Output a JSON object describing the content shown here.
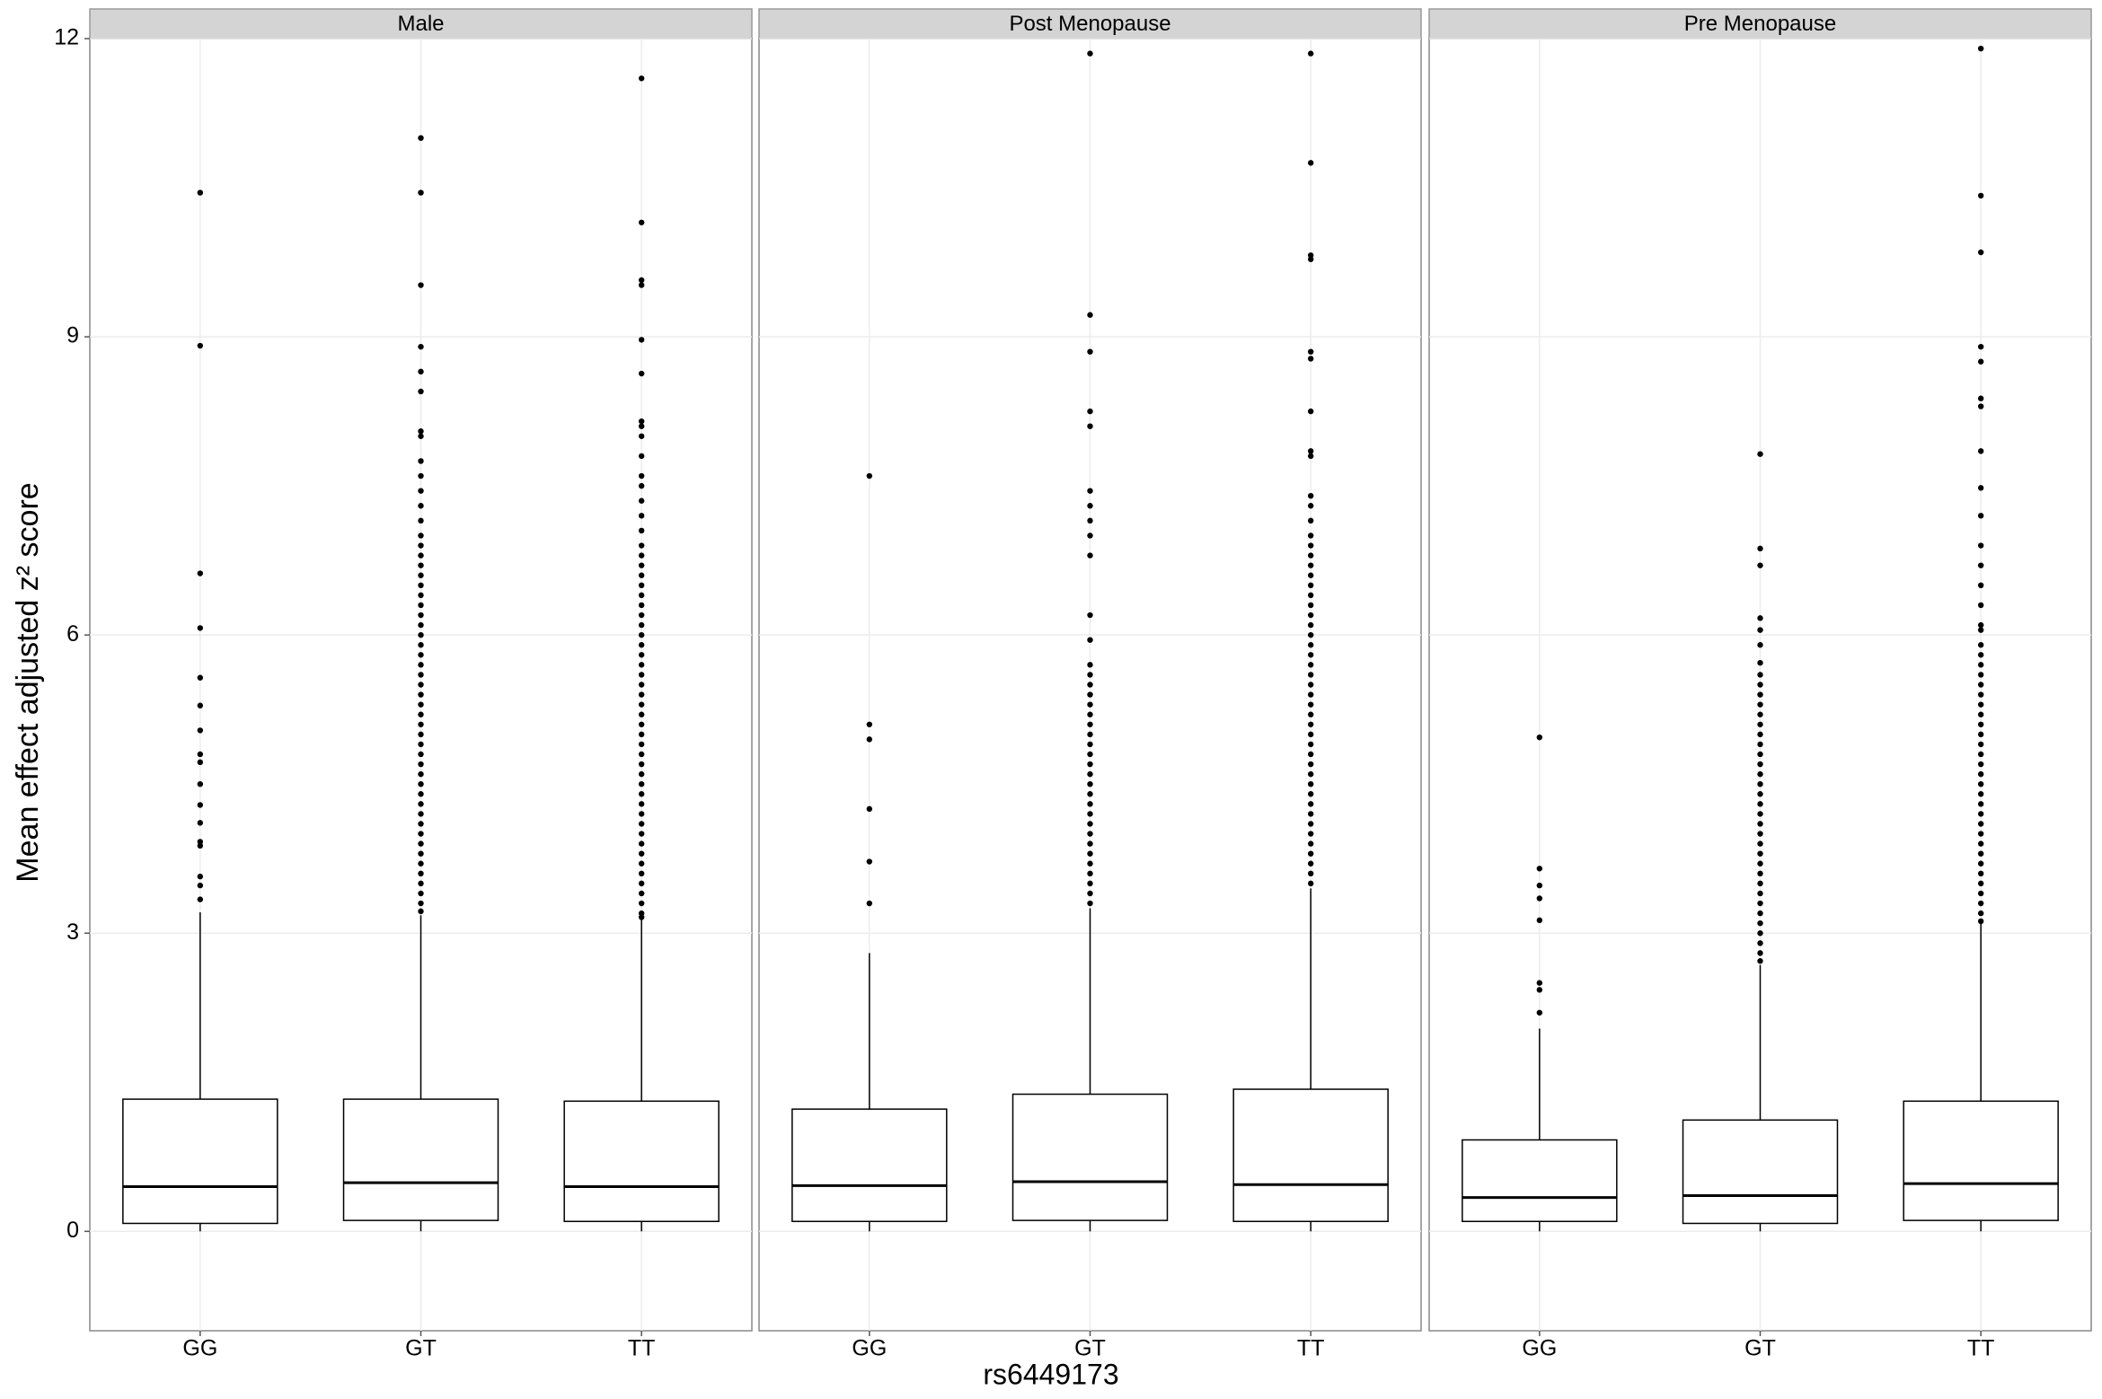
{
  "axis_labels": {
    "x": "rs6449173",
    "y": "Mean effect adjusted z² score"
  },
  "chart_data": [
    {
      "type": "box",
      "title": "Male",
      "categories": [
        "GG",
        "GT",
        "TT"
      ],
      "ylim": [
        -1,
        12
      ],
      "yticks": [
        0,
        3,
        6,
        9,
        12
      ],
      "grid": true,
      "color": "#000000",
      "stats": [
        {
          "low": 0,
          "q1": 0.08,
          "median": 0.45,
          "q3": 1.33,
          "high": 3.21,
          "outliers": [
            10.45,
            8.91,
            6.62,
            6.07,
            5.57,
            5.29,
            5.04,
            4.8,
            4.72,
            4.5,
            4.29,
            4.11,
            3.92,
            3.88,
            3.57,
            3.48,
            3.34
          ]
        },
        {
          "low": 0,
          "q1": 0.11,
          "median": 0.49,
          "q3": 1.33,
          "high": 3.18,
          "outliers": [
            11.0,
            10.45,
            9.52,
            8.9,
            8.65,
            8.45,
            8.05,
            8.0,
            7.75,
            7.6,
            7.45,
            7.3,
            7.15,
            7.0,
            6.9,
            6.8,
            6.7,
            6.6,
            6.5,
            6.4,
            6.3,
            6.2,
            6.1,
            6.0,
            5.9,
            5.8,
            5.7,
            5.6,
            5.5,
            5.4,
            5.3,
            5.2,
            5.1,
            5.0,
            4.9,
            4.8,
            4.7,
            4.6,
            4.5,
            4.4,
            4.3,
            4.2,
            4.1,
            4.0,
            3.9,
            3.8,
            3.7,
            3.6,
            3.5,
            3.4,
            3.3,
            3.22
          ]
        },
        {
          "low": 0,
          "q1": 0.1,
          "median": 0.45,
          "q3": 1.31,
          "high": 3.15,
          "outliers": [
            11.6,
            10.15,
            9.57,
            9.52,
            8.97,
            8.63,
            8.15,
            8.1,
            8.0,
            7.8,
            7.6,
            7.5,
            7.35,
            7.2,
            7.05,
            6.9,
            6.8,
            6.7,
            6.6,
            6.5,
            6.4,
            6.3,
            6.2,
            6.1,
            6.0,
            5.9,
            5.8,
            5.7,
            5.6,
            5.5,
            5.4,
            5.3,
            5.2,
            5.1,
            5.0,
            4.9,
            4.8,
            4.7,
            4.6,
            4.5,
            4.4,
            4.3,
            4.2,
            4.1,
            4.0,
            3.9,
            3.8,
            3.7,
            3.6,
            3.5,
            3.4,
            3.3,
            3.2,
            3.16
          ]
        }
      ]
    },
    {
      "type": "box",
      "title": "Post Menopause",
      "categories": [
        "GG",
        "GT",
        "TT"
      ],
      "ylim": [
        -1,
        12
      ],
      "yticks": [
        0,
        3,
        6,
        9,
        12
      ],
      "grid": true,
      "color": "#000000",
      "stats": [
        {
          "low": 0,
          "q1": 0.1,
          "median": 0.46,
          "q3": 1.23,
          "high": 2.8,
          "outliers": [
            7.6,
            5.1,
            4.95,
            4.25,
            3.72,
            3.3
          ]
        },
        {
          "low": 0,
          "q1": 0.11,
          "median": 0.5,
          "q3": 1.38,
          "high": 3.25,
          "outliers": [
            11.85,
            9.22,
            8.85,
            8.25,
            8.1,
            7.45,
            7.3,
            7.15,
            7.0,
            6.8,
            6.2,
            5.95,
            5.7,
            5.6,
            5.5,
            5.4,
            5.3,
            5.2,
            5.1,
            5.0,
            4.9,
            4.8,
            4.7,
            4.6,
            4.5,
            4.4,
            4.3,
            4.2,
            4.1,
            4.0,
            3.9,
            3.8,
            3.7,
            3.6,
            3.5,
            3.4,
            3.3
          ]
        },
        {
          "low": 0,
          "q1": 0.1,
          "median": 0.47,
          "q3": 1.43,
          "high": 3.45,
          "outliers": [
            11.85,
            10.75,
            9.82,
            9.78,
            8.85,
            8.78,
            8.25,
            7.85,
            7.8,
            7.4,
            7.3,
            7.15,
            7.0,
            6.9,
            6.8,
            6.7,
            6.6,
            6.5,
            6.4,
            6.3,
            6.2,
            6.1,
            6.0,
            5.9,
            5.8,
            5.7,
            5.6,
            5.5,
            5.4,
            5.3,
            5.2,
            5.1,
            5.0,
            4.9,
            4.8,
            4.7,
            4.6,
            4.5,
            4.4,
            4.3,
            4.2,
            4.1,
            4.0,
            3.9,
            3.8,
            3.7,
            3.6,
            3.5
          ]
        }
      ]
    },
    {
      "type": "box",
      "title": "Pre Menopause",
      "categories": [
        "GG",
        "GT",
        "TT"
      ],
      "ylim": [
        -1,
        12
      ],
      "yticks": [
        0,
        3,
        6,
        9,
        12
      ],
      "grid": true,
      "color": "#000000",
      "stats": [
        {
          "low": 0,
          "q1": 0.1,
          "median": 0.34,
          "q3": 0.92,
          "high": 2.04,
          "outliers": [
            4.97,
            3.65,
            3.48,
            3.35,
            3.13,
            2.5,
            2.43,
            2.2
          ]
        },
        {
          "low": 0,
          "q1": 0.08,
          "median": 0.36,
          "q3": 1.12,
          "high": 2.68,
          "outliers": [
            7.82,
            6.87,
            6.7,
            6.17,
            6.05,
            5.9,
            5.72,
            5.6,
            5.5,
            5.4,
            5.3,
            5.2,
            5.1,
            5.0,
            4.9,
            4.8,
            4.7,
            4.6,
            4.5,
            4.4,
            4.3,
            4.2,
            4.1,
            4.0,
            3.9,
            3.8,
            3.7,
            3.6,
            3.5,
            3.4,
            3.3,
            3.2,
            3.1,
            3.0,
            2.9,
            2.8,
            2.72
          ]
        },
        {
          "low": 0,
          "q1": 0.11,
          "median": 0.48,
          "q3": 1.31,
          "high": 3.1,
          "outliers": [
            11.9,
            10.42,
            9.85,
            8.9,
            8.75,
            8.38,
            8.3,
            7.85,
            7.48,
            7.2,
            6.9,
            6.7,
            6.5,
            6.3,
            6.1,
            6.05,
            5.9,
            5.8,
            5.7,
            5.6,
            5.5,
            5.4,
            5.3,
            5.2,
            5.1,
            5.0,
            4.9,
            4.8,
            4.7,
            4.6,
            4.5,
            4.4,
            4.3,
            4.2,
            4.1,
            4.0,
            3.9,
            3.8,
            3.7,
            3.6,
            3.5,
            3.4,
            3.3,
            3.2,
            3.12
          ]
        }
      ]
    }
  ]
}
